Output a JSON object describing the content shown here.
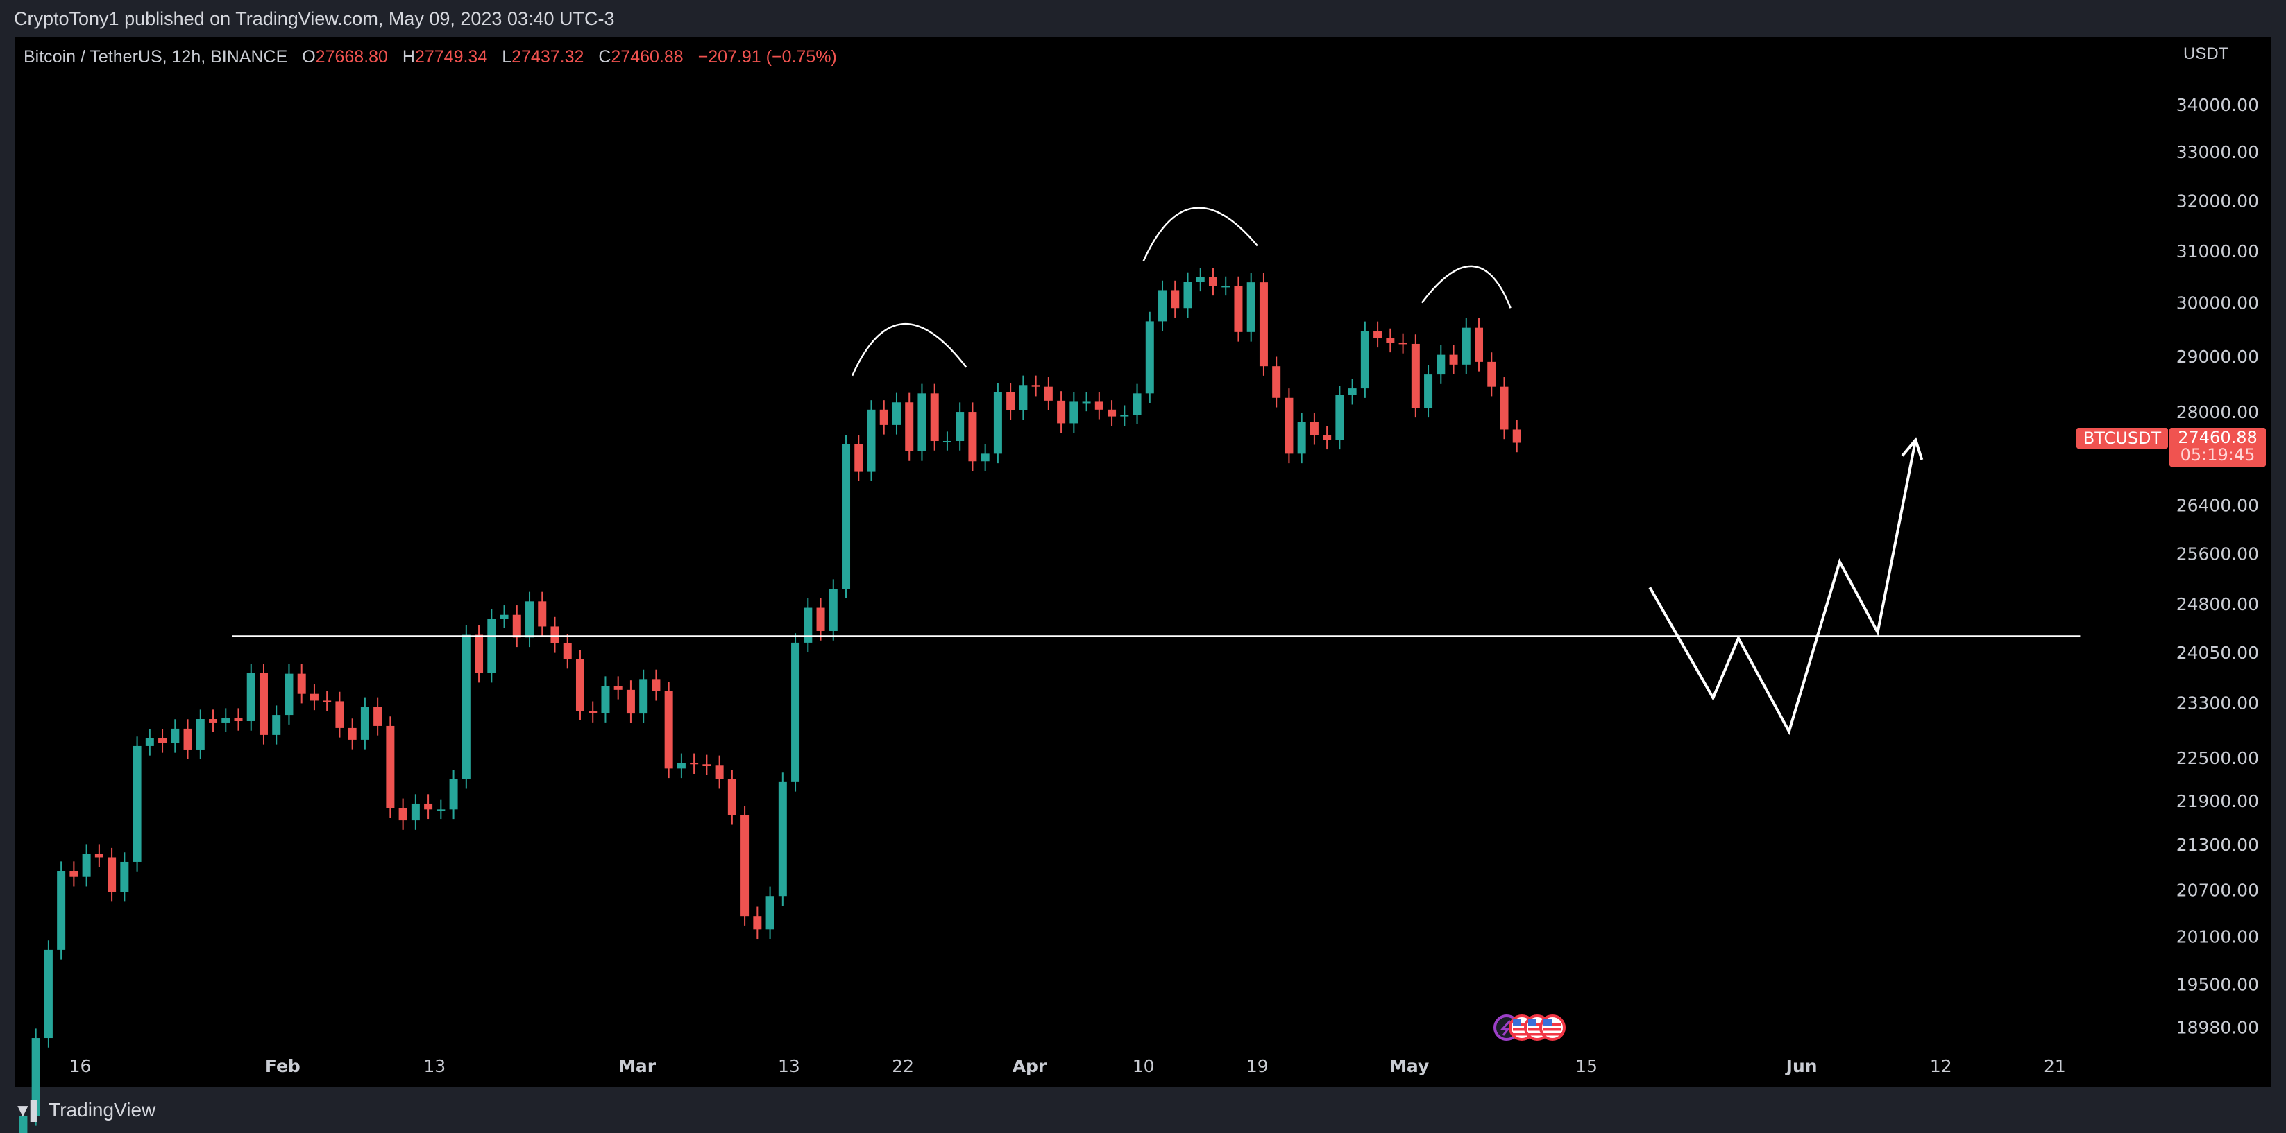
{
  "header": {
    "published": "CryptoTony1 published on TradingView.com, May 09, 2023 03:40 UTC-3"
  },
  "legend": {
    "symbol": "Bitcoin / TetherUS, 12h, BINANCE",
    "o_label": "O",
    "o": "27668.80",
    "h_label": "H",
    "h": "27749.34",
    "l_label": "L",
    "l": "27437.32",
    "c_label": "C",
    "c": "27460.88",
    "change": "−207.91 (−0.75%)"
  },
  "price_tag": {
    "symbol": "BTCUSDT",
    "price": "27460.88",
    "countdown": "05:19:45"
  },
  "footer": {
    "brand": "TradingView"
  },
  "colors": {
    "up": "#26a69a",
    "down": "#ef5350",
    "background": "#000000",
    "drawing": "#ffffff",
    "event_purple": "#9c3fc7",
    "event_red": "#f23645"
  },
  "chart_data": {
    "type": "candlestick",
    "scale": "log",
    "unit": "USDT",
    "ylim": [
      18700,
      34500
    ],
    "xlim": [
      "2023-01-10",
      "2023-06-25"
    ],
    "grid": false,
    "y_ticks": [
      "34000.00",
      "33000.00",
      "32000.00",
      "31000.00",
      "30000.00",
      "29000.00",
      "28000.00",
      "26400.00",
      "25600.00",
      "24800.00",
      "24050.00",
      "23300.00",
      "22500.00",
      "21900.00",
      "21300.00",
      "20700.00",
      "20100.00",
      "19500.00",
      "18980.00"
    ],
    "x_ticks": [
      {
        "label": "16",
        "date": "2023-01-16"
      },
      {
        "label": "Feb",
        "date": "2023-02-01"
      },
      {
        "label": "13",
        "date": "2023-02-13"
      },
      {
        "label": "Mar",
        "date": "2023-03-01"
      },
      {
        "label": "13",
        "date": "2023-03-13"
      },
      {
        "label": "22",
        "date": "2023-03-22"
      },
      {
        "label": "Apr",
        "date": "2023-04-01"
      },
      {
        "label": "10",
        "date": "2023-04-10"
      },
      {
        "label": "19",
        "date": "2023-04-19"
      },
      {
        "label": "May",
        "date": "2023-05-01"
      },
      {
        "label": "15",
        "date": "2023-05-15"
      },
      {
        "label": "Jun",
        "date": "2023-06-01"
      },
      {
        "label": "12",
        "date": "2023-06-12"
      },
      {
        "label": "21",
        "date": "2023-06-21"
      }
    ],
    "start_date": "2023-01-10",
    "first_open": 17200,
    "closes": [
      17440,
      17940,
      18850,
      19930,
      20950,
      20870,
      21180,
      21130,
      20670,
      21070,
      22670,
      22780,
      22710,
      22920,
      22620,
      23060,
      23010,
      23080,
      23030,
      23740,
      22830,
      23120,
      23730,
      23430,
      23330,
      23320,
      22930,
      22760,
      23240,
      22960,
      21800,
      21630,
      21860,
      21780,
      21780,
      22200,
      24320,
      23740,
      24570,
      24630,
      24280,
      24840,
      24450,
      24190,
      23950,
      23180,
      23150,
      23550,
      23490,
      23140,
      23650,
      23470,
      22350,
      22430,
      22410,
      22400,
      22200,
      21700,
      20360,
      20190,
      20620,
      22160,
      24200,
      24740,
      24380,
      25040,
      27430,
      26970,
      28040,
      27770,
      28170,
      27310,
      28330,
      27490,
      27490,
      28000,
      27140,
      27270,
      28350,
      28030,
      28480,
      28450,
      28200,
      27800,
      28180,
      28180,
      28040,
      27920,
      27950,
      28330,
      29650,
      30240,
      29900,
      30400,
      30490,
      30320,
      30320,
      29450,
      30390,
      28820,
      28250,
      27270,
      27820,
      27590,
      27510,
      28300,
      28420,
      29470,
      29340,
      29250,
      29230,
      28070,
      28670,
      29030,
      28850,
      29530,
      28900,
      28450,
      27690,
      27460
    ],
    "annotations": {
      "support_line": {
        "price": 24300,
        "from": "2023-01-28",
        "to": "2023-06-23"
      },
      "arcs": [
        {
          "from": [
            "2023-03-18",
            28650
          ],
          "apex": [
            "2023-03-22",
            29600
          ],
          "to": [
            "2023-03-27",
            28800
          ]
        },
        {
          "from": [
            "2023-04-10",
            30800
          ],
          "apex": [
            "2023-04-14",
            31850
          ],
          "to": [
            "2023-04-19",
            31100
          ]
        },
        {
          "from": [
            "2023-05-02",
            30000
          ],
          "apex": [
            "2023-05-06",
            30700
          ],
          "to": [
            "2023-05-09",
            29900
          ]
        }
      ],
      "projection": [
        [
          "2023-05-20",
          25060
        ],
        [
          "2023-05-25",
          23370
        ],
        [
          "2023-05-27",
          24270
        ],
        [
          "2023-05-31",
          22880
        ],
        [
          "2023-06-04",
          25470
        ],
        [
          "2023-06-07",
          24360
        ],
        [
          "2023-06-10",
          27510
        ]
      ]
    },
    "events": [
      "lightning-icon",
      "us-flag-icon",
      "us-flag-icon",
      "us-flag-icon"
    ]
  }
}
